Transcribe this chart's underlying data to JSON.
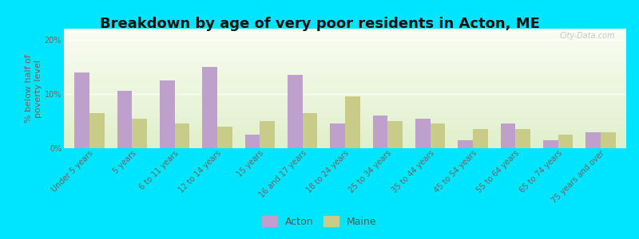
{
  "title": "Breakdown by age of very poor residents in Acton, ME",
  "ylabel": "% below half of\npoverty level",
  "categories": [
    "Under 5 years",
    "5 years",
    "6 to 11 years",
    "12 to 14 years",
    "15 years",
    "16 and 17 years",
    "18 to 24 years",
    "25 to 34 years",
    "35 to 44 years",
    "45 to 54 years",
    "55 to 64 years",
    "65 to 74 years",
    "75 years and over"
  ],
  "acton_values": [
    14.0,
    10.5,
    12.5,
    15.0,
    2.5,
    13.5,
    4.5,
    6.0,
    5.5,
    1.5,
    4.5,
    1.5,
    3.0
  ],
  "maine_values": [
    6.5,
    5.5,
    4.5,
    4.0,
    5.0,
    6.5,
    9.5,
    5.0,
    4.5,
    3.5,
    3.5,
    2.5,
    3.0
  ],
  "acton_color": "#bf9fcc",
  "maine_color": "#c8cc88",
  "outer_bg": "#00e5ff",
  "ylim": [
    0,
    22
  ],
  "yticks": [
    0,
    10,
    20
  ],
  "bar_width": 0.35,
  "title_fontsize": 13,
  "axis_label_fontsize": 8,
  "tick_fontsize": 7,
  "legend_fontsize": 9,
  "watermark": "City-Data.com"
}
